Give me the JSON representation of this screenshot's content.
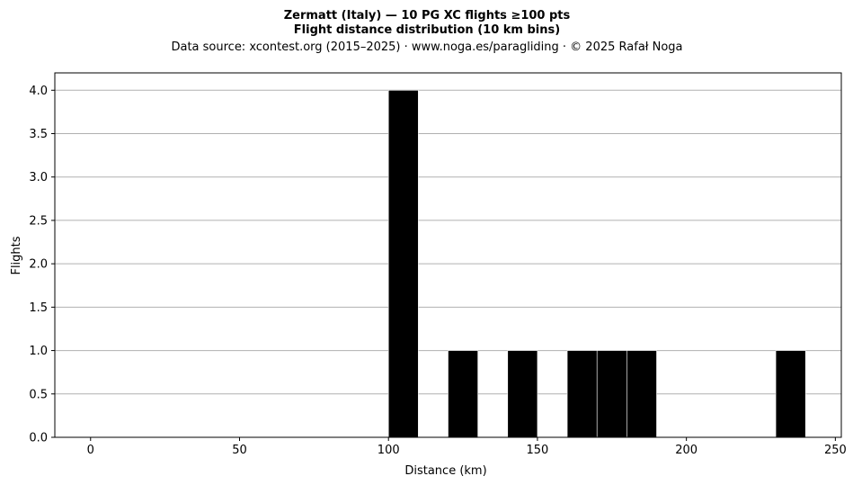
{
  "chart_data": {
    "type": "bar",
    "title": "Zermatt (Italy)  —  10 PG XC flights ≥100 pts",
    "title2": "Flight distance distribution (10 km bins)",
    "subtitle": "Data source: xcontest.org (2015–2025)  ·  www.noga.es/paragliding  ·  © 2025 Rafał Noga",
    "xlabel": "Distance (km)",
    "ylabel": "Flights",
    "bin_width": 10,
    "bins": [
      {
        "start": 100,
        "count": 4
      },
      {
        "start": 120,
        "count": 1
      },
      {
        "start": 140,
        "count": 1
      },
      {
        "start": 160,
        "count": 1
      },
      {
        "start": 170,
        "count": 1
      },
      {
        "start": 180,
        "count": 1
      },
      {
        "start": 230,
        "count": 1
      }
    ],
    "xlim": [
      -12,
      252
    ],
    "ylim": [
      0,
      4.2
    ],
    "xticks": [
      0,
      50,
      100,
      150,
      200,
      250
    ],
    "xtick_labels": [
      "0",
      "50",
      "100",
      "150",
      "200",
      "250"
    ],
    "yticks": [
      0,
      0.5,
      1,
      1.5,
      2,
      2.5,
      3,
      3.5,
      4
    ],
    "ytick_labels": [
      "0.0",
      "0.5",
      "1.0",
      "1.5",
      "2.0",
      "2.5",
      "3.0",
      "3.5",
      "4.0"
    ],
    "grid": "y",
    "bar_color": "#000000",
    "bar_edge_color": "#ffffff",
    "grid_color": "#b0b0b0"
  }
}
